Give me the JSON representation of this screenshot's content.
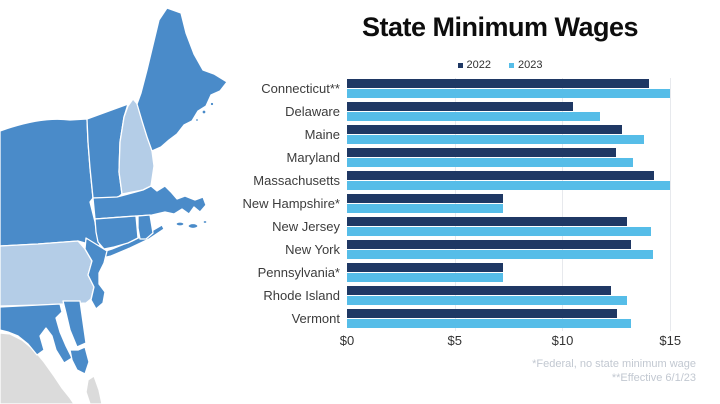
{
  "title": "State Minimum Wages",
  "legend": [
    {
      "label": "2022",
      "color": "#1F3864"
    },
    {
      "label": "2023",
      "color": "#56BDE8"
    }
  ],
  "chart_data": {
    "type": "bar",
    "orientation": "horizontal",
    "title": "State Minimum Wages",
    "xlabel": "",
    "ylabel": "",
    "grid": "vertical",
    "legend_position": "top-center",
    "categories": [
      "Connecticut**",
      "Delaware",
      "Maine",
      "Maryland",
      "Massachusetts",
      "New Hampshire*",
      "New Jersey",
      "New York",
      "Pennsylvania*",
      "Rhode Island",
      "Vermont"
    ],
    "series": [
      {
        "name": "2022",
        "color": "#1F3864",
        "values": [
          14.0,
          10.5,
          12.75,
          12.5,
          14.25,
          7.25,
          13.0,
          13.2,
          7.25,
          12.25,
          12.55
        ]
      },
      {
        "name": "2023",
        "color": "#56BDE8",
        "values": [
          15.0,
          11.75,
          13.8,
          13.25,
          15.0,
          7.25,
          14.13,
          14.2,
          7.25,
          13.0,
          13.18
        ]
      }
    ],
    "x_ticks": [
      "$0",
      "$5",
      "$10",
      "$15"
    ],
    "x_tick_values": [
      0,
      5,
      10,
      15
    ],
    "xlim": [
      0,
      16.15
    ]
  },
  "footnotes": [
    "*Federal, no state minimum wage",
    "**Effective 6/1/23"
  ],
  "map": {
    "description": "northeast-us-states-map",
    "medium_color": "#4A8BC9",
    "light_color": "#B4CDE7",
    "outside_color": "#DBDBDB",
    "border_color": "#FFFFFF",
    "medium_states": [
      "Maine",
      "Vermont",
      "New York",
      "Massachusetts",
      "Connecticut",
      "Rhode Island",
      "New Jersey",
      "Delaware",
      "Maryland"
    ],
    "light_states": [
      "New Hampshire",
      "Pennsylvania"
    ]
  },
  "colors": {
    "gridline": "#E7E9ED",
    "axis_text": "#333333",
    "footnote_text": "#C2C8D1",
    "title_text": "#0D0D0D",
    "background": "#FFFFFF"
  }
}
